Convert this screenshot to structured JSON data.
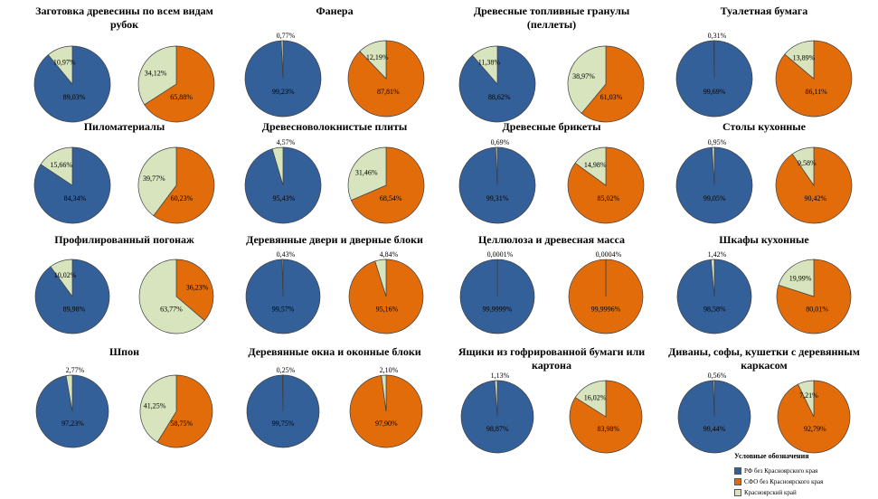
{
  "colors": {
    "rf": "#34609a",
    "sfo": "#e36c0a",
    "kray": "#d7e4bd",
    "stroke": "#404040"
  },
  "legend": {
    "title": "Условные обозначения",
    "items": [
      {
        "label": "РФ без Красноярского края",
        "color": "#34609a"
      },
      {
        "label": "СФО без Красноярского края",
        "color": "#e36c0a"
      },
      {
        "label": "Красноярский край",
        "color": "#d7e4bd"
      }
    ]
  },
  "chart_data": [
    {
      "type": "pie",
      "title": "Заготовка древесины по всем видам рубок",
      "left": {
        "values": [
          89.03,
          10.97
        ],
        "labels": [
          "89,03%",
          "10,97%"
        ],
        "colors": [
          "rf",
          "kray"
        ]
      },
      "right": {
        "values": [
          65.88,
          34.12
        ],
        "labels": [
          "65,88%",
          "34,12%"
        ],
        "colors": [
          "sfo",
          "kray"
        ]
      }
    },
    {
      "type": "pie",
      "title": "Фанера",
      "left": {
        "values": [
          99.23,
          0.77
        ],
        "labels": [
          "99,23%",
          "0,77%"
        ],
        "colors": [
          "rf",
          "kray"
        ]
      },
      "right": {
        "values": [
          87.81,
          12.19
        ],
        "labels": [
          "87,81%",
          "12,19%"
        ],
        "colors": [
          "sfo",
          "kray"
        ]
      }
    },
    {
      "type": "pie",
      "title": "Древесные топливные гранулы (пеллеты)",
      "left": {
        "values": [
          88.62,
          11.38
        ],
        "labels": [
          "88,62%",
          "11,38%"
        ],
        "colors": [
          "rf",
          "kray"
        ]
      },
      "right": {
        "values": [
          61.03,
          38.97
        ],
        "labels": [
          "61,03%",
          "38,97%"
        ],
        "colors": [
          "sfo",
          "kray"
        ]
      }
    },
    {
      "type": "pie",
      "title": "Туалетная бумага",
      "left": {
        "values": [
          99.69,
          0.31
        ],
        "labels": [
          "99,69%",
          "0,31%"
        ],
        "colors": [
          "rf",
          "kray"
        ]
      },
      "right": {
        "values": [
          86.11,
          13.89
        ],
        "labels": [
          "86,11%",
          "13,89%"
        ],
        "colors": [
          "sfo",
          "kray"
        ]
      }
    },
    {
      "type": "pie",
      "title": "Пиломатериалы",
      "left": {
        "values": [
          84.34,
          15.66
        ],
        "labels": [
          "84,34%",
          "15,66%"
        ],
        "colors": [
          "rf",
          "kray"
        ]
      },
      "right": {
        "values": [
          60.23,
          39.77
        ],
        "labels": [
          "60,23%",
          "39,77%"
        ],
        "colors": [
          "sfo",
          "kray"
        ]
      }
    },
    {
      "type": "pie",
      "title": "Древесноволокнистые плиты",
      "left": {
        "values": [
          95.43,
          4.57
        ],
        "labels": [
          "95,43%",
          "4,57%"
        ],
        "colors": [
          "rf",
          "kray"
        ]
      },
      "right": {
        "values": [
          68.54,
          31.46
        ],
        "labels": [
          "68,54%",
          "31,46%"
        ],
        "colors": [
          "sfo",
          "kray"
        ]
      }
    },
    {
      "type": "pie",
      "title": "Древесные брикеты",
      "left": {
        "values": [
          99.31,
          0.69
        ],
        "labels": [
          "99,31%",
          "0,69%"
        ],
        "colors": [
          "rf",
          "kray"
        ]
      },
      "right": {
        "values": [
          85.02,
          14.98
        ],
        "labels": [
          "85,02%",
          "14,98%"
        ],
        "colors": [
          "sfo",
          "kray"
        ]
      }
    },
    {
      "type": "pie",
      "title": "Столы кухонные",
      "left": {
        "values": [
          99.05,
          0.95
        ],
        "labels": [
          "99,05%",
          "0,95%"
        ],
        "colors": [
          "rf",
          "kray"
        ]
      },
      "right": {
        "values": [
          90.42,
          9.58
        ],
        "labels": [
          "90,42%",
          "9,58%"
        ],
        "colors": [
          "sfo",
          "kray"
        ]
      }
    },
    {
      "type": "pie",
      "title": "Профилированный погонаж",
      "left": {
        "values": [
          89.98,
          10.02
        ],
        "labels": [
          "89,98%",
          "10,02%"
        ],
        "colors": [
          "rf",
          "kray"
        ]
      },
      "right": {
        "values": [
          36.23,
          63.77
        ],
        "labels": [
          "36,23%",
          "63,77%"
        ],
        "colors": [
          "sfo",
          "kray"
        ]
      }
    },
    {
      "type": "pie",
      "title": "Деревянные двери и дверные блоки",
      "left": {
        "values": [
          99.57,
          0.43
        ],
        "labels": [
          "99,57%",
          "0,43%"
        ],
        "colors": [
          "rf",
          "kray"
        ]
      },
      "right": {
        "values": [
          95.16,
          4.84
        ],
        "labels": [
          "95,16%",
          "4,84%"
        ],
        "colors": [
          "sfo",
          "kray"
        ]
      }
    },
    {
      "type": "pie",
      "title": "Целлюлоза и древесная масса",
      "left": {
        "values": [
          99.9999,
          0.0001
        ],
        "labels": [
          "99,9999%",
          "0,0001%"
        ],
        "colors": [
          "rf",
          "kray"
        ]
      },
      "right": {
        "values": [
          99.9996,
          0.0004
        ],
        "labels": [
          "99,9996%",
          "0,0004%"
        ],
        "colors": [
          "sfo",
          "kray"
        ]
      }
    },
    {
      "type": "pie",
      "title": "Шкафы кухонные",
      "left": {
        "values": [
          98.58,
          1.42
        ],
        "labels": [
          "98,58%",
          "1,42%"
        ],
        "colors": [
          "rf",
          "kray"
        ]
      },
      "right": {
        "values": [
          80.01,
          19.99
        ],
        "labels": [
          "80,01%",
          "19,99%"
        ],
        "colors": [
          "sfo",
          "kray"
        ]
      }
    },
    {
      "type": "pie",
      "title": "Шпон",
      "left": {
        "values": [
          97.23,
          2.77
        ],
        "labels": [
          "97,23%",
          "2,77%"
        ],
        "colors": [
          "rf",
          "kray"
        ]
      },
      "right": {
        "values": [
          58.75,
          41.25
        ],
        "labels": [
          "58,75%",
          "41,25%"
        ],
        "colors": [
          "sfo",
          "kray"
        ]
      }
    },
    {
      "type": "pie",
      "title": "Деревянные окна и оконные блоки",
      "left": {
        "values": [
          99.75,
          0.25
        ],
        "labels": [
          "99,75%",
          "0,25%"
        ],
        "colors": [
          "rf",
          "kray"
        ]
      },
      "right": {
        "values": [
          97.9,
          2.1
        ],
        "labels": [
          "97,90%",
          "2,10%"
        ],
        "colors": [
          "sfo",
          "kray"
        ]
      }
    },
    {
      "type": "pie",
      "title": "Ящики из гофрированной бумаги или картона",
      "left": {
        "values": [
          98.87,
          1.13
        ],
        "labels": [
          "98,87%",
          "1,13%"
        ],
        "colors": [
          "rf",
          "kray"
        ]
      },
      "right": {
        "values": [
          83.98,
          16.02
        ],
        "labels": [
          "83,98%",
          "16,02%"
        ],
        "colors": [
          "sfo",
          "kray"
        ]
      }
    },
    {
      "type": "pie",
      "title": "Диваны, софы, кушетки с деревянным каркасом",
      "left": {
        "values": [
          99.44,
          0.56
        ],
        "labels": [
          "99,44%",
          "0,56%"
        ],
        "colors": [
          "rf",
          "kray"
        ]
      },
      "right": {
        "values": [
          92.79,
          7.21
        ],
        "labels": [
          "92,79%",
          "7,21%"
        ],
        "colors": [
          "sfo",
          "kray"
        ]
      }
    }
  ]
}
